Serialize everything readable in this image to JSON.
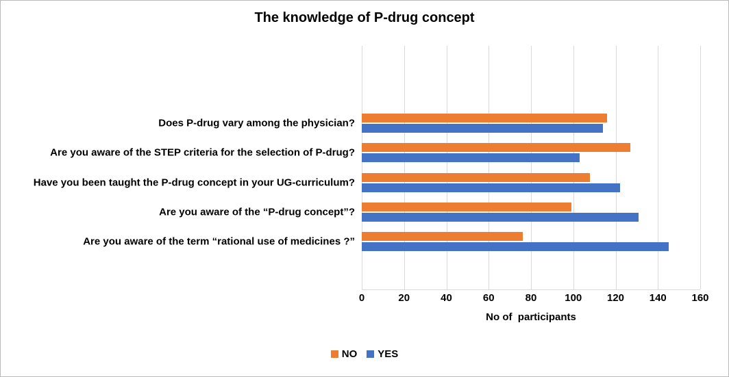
{
  "chart_data": {
    "type": "bar",
    "orientation": "horizontal",
    "title": "The knowledge of P-drug concept",
    "categories": [
      "Does P-drug vary among the physician?",
      "Are you aware of the STEP criteria for the selection of P-drug?",
      "Have you been taught the P-drug concept in your UG-curriculum?",
      "Are you aware of the “P-drug concept”?",
      "Are you aware of the term “rational use of medicines ?”"
    ],
    "series": [
      {
        "name": "NO",
        "color": "#ED7D31",
        "values": [
          116,
          127,
          108,
          99,
          76
        ]
      },
      {
        "name": "YES",
        "color": "#4472C4",
        "values": [
          114,
          103,
          122,
          131,
          145
        ]
      }
    ],
    "xlabel": "No of  participants",
    "xlim": [
      0,
      160
    ],
    "xticks": [
      0,
      20,
      40,
      60,
      80,
      100,
      120,
      140,
      160
    ],
    "grid": "vertical-gridlines-on",
    "legend_position": "bottom",
    "colors": {
      "gridline": "#d9d9d9",
      "text": "#000000",
      "background": "#ffffff",
      "border": "#b9b9b9"
    }
  }
}
